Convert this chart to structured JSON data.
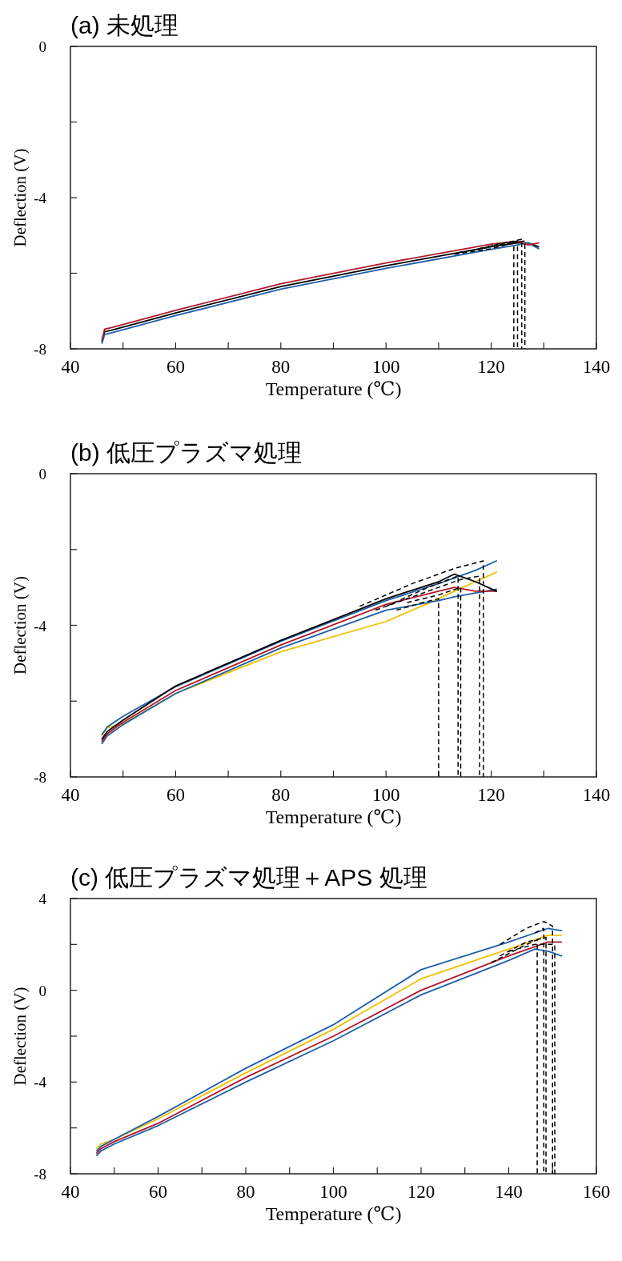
{
  "chart_data": [
    {
      "type": "line",
      "title": "(a) 未処理",
      "xlabel": "Temperature (℃)",
      "ylabel": "Deflection (V)",
      "xlim": [
        40,
        140
      ],
      "ylim": [
        -8,
        0
      ],
      "xticks": [
        40,
        {
          "value": 50,
          "label": null
        },
        60,
        {
          "value": 70,
          "label": null
        },
        80,
        {
          "value": 90,
          "label": null
        },
        100,
        {
          "value": 110,
          "label": null
        },
        120,
        {
          "value": 130,
          "label": null
        },
        140
      ],
      "yticks": [
        -8,
        {
          "value": -6,
          "label": null
        },
        -4,
        {
          "value": -2,
          "label": null
        },
        0
      ],
      "series": [
        {
          "color": "#000000",
          "x": [
            46,
            46.5,
            48,
            60,
            80,
            100,
            120,
            125,
            127,
            129
          ],
          "values": [
            -7.8,
            -7.55,
            -7.5,
            -7.05,
            -6.35,
            -5.8,
            -5.3,
            -5.2,
            -5.2,
            -5.3
          ]
        },
        {
          "color": "#1f5fa8",
          "x": [
            46,
            46.5,
            48,
            60,
            80,
            100,
            120,
            125,
            127,
            129
          ],
          "values": [
            -7.85,
            -7.62,
            -7.57,
            -7.12,
            -6.42,
            -5.87,
            -5.37,
            -5.25,
            -5.2,
            -5.35
          ]
        },
        {
          "color": "#b0182a",
          "x": [
            46,
            46.5,
            48,
            60,
            80,
            100,
            120,
            125,
            127,
            129
          ],
          "values": [
            -7.75,
            -7.48,
            -7.43,
            -6.98,
            -6.28,
            -5.73,
            -5.23,
            -5.15,
            -5.25,
            -5.2
          ]
        },
        {
          "color": "#000000",
          "line_style": "dashed",
          "x": [
            113,
            120,
            124.3,
            124.3
          ],
          "values": [
            -5.5,
            -5.35,
            -5.2,
            -8
          ]
        },
        {
          "color": "#000000",
          "line_style": "dashed",
          "x": [
            114,
            120,
            125,
            125
          ],
          "values": [
            -5.45,
            -5.3,
            -5.15,
            -8
          ]
        },
        {
          "color": "#000000",
          "line_style": "dashed",
          "x": [
            116,
            121,
            125.8,
            125.8
          ],
          "values": [
            -5.4,
            -5.25,
            -5.1,
            -8
          ]
        },
        {
          "color": "#000000",
          "line_style": "dashed",
          "x": [
            118,
            122,
            126.4,
            126.4
          ],
          "values": [
            -5.35,
            -5.2,
            -5.15,
            -8
          ]
        }
      ]
    },
    {
      "type": "line",
      "title": "(b) 低圧プラズマ処理",
      "xlabel": "Temperature (℃)",
      "ylabel": "Deflection (V)",
      "xlim": [
        40,
        140
      ],
      "ylim": [
        -8,
        0
      ],
      "xticks": [
        40,
        {
          "value": 50,
          "label": null
        },
        60,
        {
          "value": 70,
          "label": null
        },
        80,
        {
          "value": 90,
          "label": null
        },
        100,
        {
          "value": 110,
          "label": null
        },
        120,
        {
          "value": 130,
          "label": null
        },
        140
      ],
      "yticks": [
        -8,
        {
          "value": -6,
          "label": null
        },
        -4,
        {
          "value": -2,
          "label": null
        },
        0
      ],
      "series": [
        {
          "color": "#f0c000",
          "x": [
            46,
            47,
            50,
            60,
            80,
            100,
            110,
            113,
            117,
            121
          ],
          "values": [
            -6.9,
            -6.7,
            -6.6,
            -5.8,
            -4.7,
            -3.9,
            -3.3,
            -3.1,
            -2.85,
            -2.6
          ]
        },
        {
          "color": "#1f5fa8",
          "x": [
            46,
            47,
            50,
            60,
            80,
            100,
            110,
            113,
            117,
            121
          ],
          "values": [
            -7.12,
            -6.92,
            -6.62,
            -5.8,
            -4.6,
            -3.6,
            -3.35,
            -3.25,
            -3.15,
            -3.05
          ]
        },
        {
          "color": "#1f5fa8",
          "x": [
            46,
            47,
            50,
            60,
            80,
            100,
            110,
            113,
            117,
            121
          ],
          "values": [
            -6.88,
            -6.68,
            -6.4,
            -5.62,
            -4.42,
            -3.35,
            -2.9,
            -2.75,
            -2.55,
            -2.3
          ]
        },
        {
          "color": "#b0182a",
          "x": [
            46,
            47,
            50,
            60,
            80,
            100,
            110,
            113,
            117,
            121
          ],
          "values": [
            -7.06,
            -6.86,
            -6.56,
            -5.72,
            -4.52,
            -3.45,
            -3.1,
            -3.0,
            -3.1,
            -3.1
          ]
        },
        {
          "color": "#000000",
          "x": [
            46,
            47,
            50,
            60,
            80,
            100,
            110,
            113,
            117,
            121
          ],
          "values": [
            -7.0,
            -6.8,
            -6.5,
            -5.6,
            -4.4,
            -3.3,
            -2.85,
            -2.65,
            -2.85,
            -3.1
          ]
        },
        {
          "color": "#000000",
          "line_style": "dashed",
          "x": [
            95,
            105,
            113,
            118.5,
            118.5
          ],
          "values": [
            -3.5,
            -2.9,
            -2.5,
            -2.3,
            -8
          ]
        },
        {
          "color": "#000000",
          "line_style": "dashed",
          "x": [
            98,
            108,
            114,
            117.8,
            117.8
          ],
          "values": [
            -3.6,
            -3.1,
            -2.8,
            -2.7,
            -8
          ]
        },
        {
          "color": "#000000",
          "line_style": "dashed",
          "x": [
            100,
            108,
            113.7,
            113.7
          ],
          "values": [
            -3.5,
            -3.0,
            -2.7,
            -8
          ]
        },
        {
          "color": "#000000",
          "line_style": "dashed",
          "x": [
            104,
            110,
            114.2,
            114.2
          ],
          "values": [
            -3.4,
            -3.2,
            -3.0,
            -8
          ]
        },
        {
          "color": "#000000",
          "line_style": "dashed",
          "x": [
            102,
            107,
            110,
            110
          ],
          "values": [
            -3.6,
            -3.4,
            -3.3,
            -8
          ]
        }
      ]
    },
    {
      "type": "line",
      "title": "(c) 低圧プラズマ処理＋APS 処理",
      "xlabel": "Temperature (℃)",
      "ylabel": "Deflection (V)",
      "xlim": [
        40,
        160
      ],
      "ylim": [
        -8,
        4
      ],
      "xticks": [
        40,
        {
          "value": 50,
          "label": null
        },
        60,
        {
          "value": 70,
          "label": null
        },
        80,
        {
          "value": 90,
          "label": null
        },
        100,
        {
          "value": 110,
          "label": null
        },
        120,
        {
          "value": 130,
          "label": null
        },
        140,
        {
          "value": 150,
          "label": null
        },
        160
      ],
      "yticks": [
        -8,
        {
          "value": -6,
          "label": null
        },
        -4,
        {
          "value": -2,
          "label": null
        },
        0,
        {
          "value": 2,
          "label": null
        },
        4
      ],
      "series": [
        {
          "color": "#1f5fa8",
          "x": [
            46,
            47,
            50,
            60,
            80,
            100,
            120,
            140,
            146,
            149,
            152
          ],
          "values": [
            -7.2,
            -7.0,
            -6.7,
            -5.9,
            -4.0,
            -2.2,
            -0.2,
            1.3,
            1.8,
            1.7,
            1.5
          ]
        },
        {
          "color": "#b0182a",
          "x": [
            46,
            47,
            50,
            60,
            80,
            100,
            120,
            140,
            146,
            149,
            152
          ],
          "values": [
            -7.1,
            -6.9,
            -6.6,
            -5.8,
            -3.8,
            -2.0,
            0.0,
            1.5,
            1.9,
            2.1,
            2.1
          ]
        },
        {
          "color": "#f0c000",
          "x": [
            46,
            47,
            50,
            60,
            80,
            100,
            120,
            140,
            146,
            149,
            152
          ],
          "values": [
            -6.9,
            -6.7,
            -6.5,
            -5.6,
            -3.6,
            -1.7,
            0.5,
            1.8,
            2.2,
            2.4,
            2.4
          ]
        },
        {
          "color": "#1f5fa8",
          "x": [
            46,
            47,
            50,
            60,
            80,
            100,
            120,
            140,
            146,
            149,
            152
          ],
          "values": [
            -7.0,
            -6.8,
            -6.5,
            -5.5,
            -3.4,
            -1.5,
            0.9,
            2.1,
            2.5,
            2.7,
            2.6
          ]
        },
        {
          "color": "#000000",
          "line_style": "dashed",
          "x": [
            138,
            144,
            148,
            150,
            150
          ],
          "values": [
            2.0,
            2.7,
            3.0,
            2.8,
            -8
          ]
        },
        {
          "color": "#000000",
          "line_style": "dashed",
          "x": [
            136,
            143,
            146.5,
            146.5
          ],
          "values": [
            1.2,
            1.9,
            2.2,
            -8
          ]
        },
        {
          "color": "#000000",
          "line_style": "dashed",
          "x": [
            138,
            144,
            148.5,
            148.5
          ],
          "values": [
            1.5,
            2.1,
            2.3,
            -8
          ]
        },
        {
          "color": "#000000",
          "line_style": "dashed",
          "x": [
            140,
            146,
            150.5,
            150.5
          ],
          "values": [
            1.7,
            2.0,
            2.0,
            -8
          ]
        },
        {
          "color": "#000000",
          "line_style": "dashed",
          "x": [
            146,
            148,
            148,
            148
          ],
          "values": [
            2.5,
            2.7,
            2.6,
            -8
          ]
        }
      ]
    }
  ]
}
